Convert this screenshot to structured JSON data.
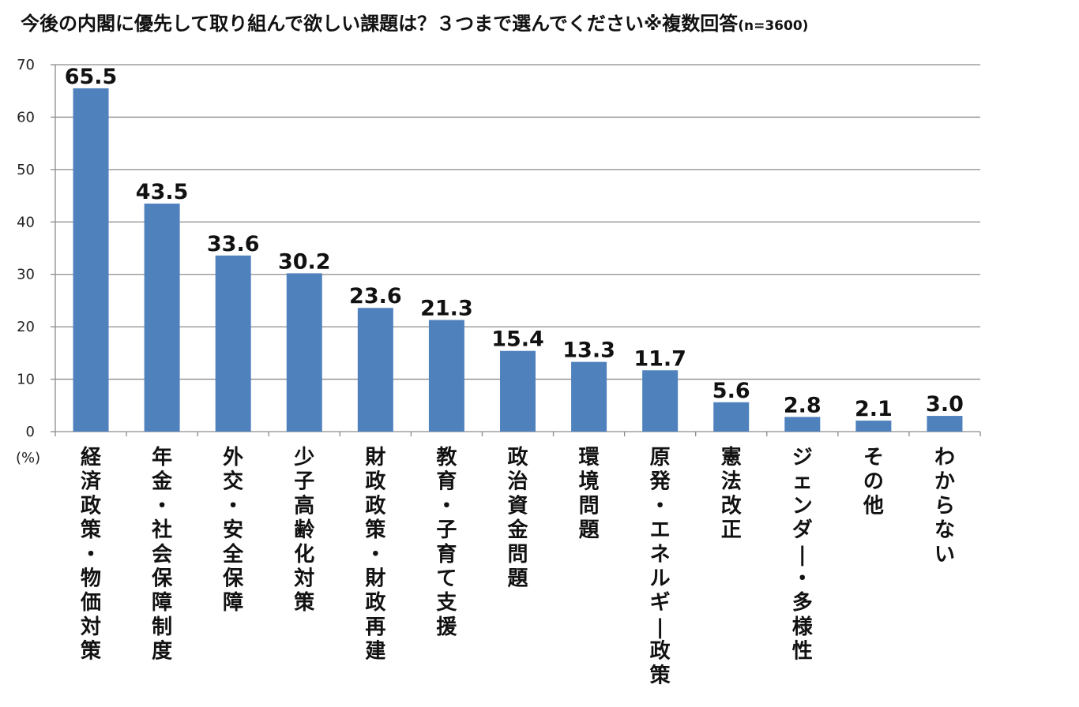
{
  "chart_data": {
    "type": "bar",
    "title": "今後の内閣に優先して取り組んで欲しい課題は？３つまで選んでください※複数回答",
    "title_note": "(n=3600)",
    "ylabel": "(%)",
    "xlabel": "",
    "ylim": [
      0,
      70
    ],
    "yticks": [
      0,
      10,
      20,
      30,
      40,
      50,
      60,
      70
    ],
    "grid": true,
    "legend": "none",
    "bar_color": "#4f81bd",
    "categories": [
      "経済政策・物価対策",
      "年金・社会保障制度",
      "外交・安全保障",
      "少子高齢化対策",
      "財政政策・財政再建",
      "教育・子育て支援",
      "政治資金問題",
      "環境問題",
      "原発・エネルギー政策",
      "憲法改正",
      "ジェンダー・多様性",
      "その他",
      "わからない"
    ],
    "values": [
      65.5,
      43.5,
      33.6,
      30.2,
      23.6,
      21.3,
      15.4,
      13.3,
      11.7,
      5.6,
      2.8,
      2.1,
      3.0
    ],
    "value_labels": [
      "65.5",
      "43.5",
      "33.6",
      "30.2",
      "23.6",
      "21.3",
      "15.4",
      "13.3",
      "11.7",
      "5.6",
      "2.8",
      "2.1",
      "3.0"
    ]
  }
}
